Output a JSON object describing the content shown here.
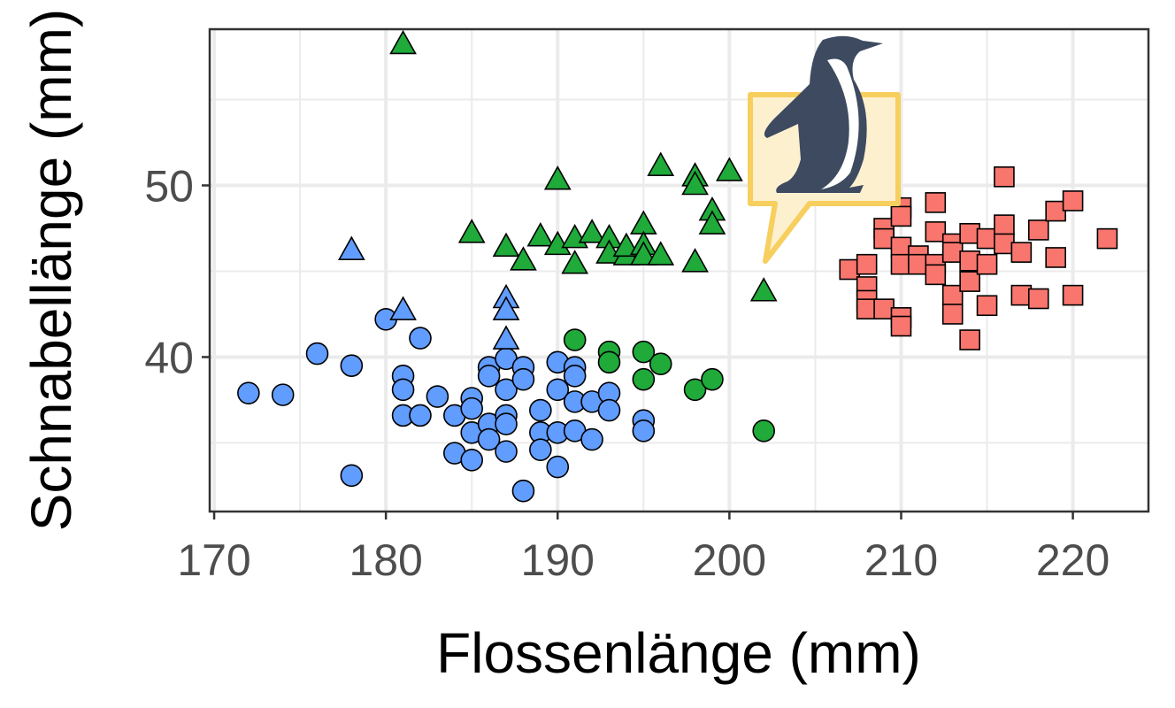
{
  "chart_data": {
    "type": "scatter",
    "xlabel": "Flossenlänge (mm)",
    "ylabel": "Schnabellänge (mm)",
    "xlim": [
      169.74,
      224.4
    ],
    "ylim": [
      31.0,
      59.1
    ],
    "xticks": [
      170,
      180,
      190,
      200,
      210,
      220
    ],
    "yticks": [
      40,
      50
    ],
    "grid": true,
    "legend": "none",
    "logo": "penguin-speech-bubble",
    "series": [
      {
        "color": "#619CFF",
        "marker": "circle",
        "points": [
          [
            172,
            37.9
          ],
          [
            174,
            37.8
          ],
          [
            176,
            40.2
          ],
          [
            178,
            39.5
          ],
          [
            178,
            33.1
          ],
          [
            180,
            42.2
          ],
          [
            182,
            41.1
          ],
          [
            181,
            38.9
          ],
          [
            181,
            38.1
          ],
          [
            181,
            36.6
          ],
          [
            182,
            36.6
          ],
          [
            183,
            37.7
          ],
          [
            184,
            36.6
          ],
          [
            184,
            34.4
          ],
          [
            185,
            37.6
          ],
          [
            185,
            37.0
          ],
          [
            185,
            35.6
          ],
          [
            185,
            34.0
          ],
          [
            186,
            39.4
          ],
          [
            186,
            38.9
          ],
          [
            186,
            36.1
          ],
          [
            186,
            35.2
          ],
          [
            187,
            38.1
          ],
          [
            187,
            36.6
          ],
          [
            187,
            36.1
          ],
          [
            187,
            34.5
          ],
          [
            187,
            39.9
          ],
          [
            188,
            39.4
          ],
          [
            188,
            38.7
          ],
          [
            188,
            32.2
          ],
          [
            189,
            36.9
          ],
          [
            189,
            35.6
          ],
          [
            189,
            34.6
          ],
          [
            190,
            39.7
          ],
          [
            190,
            38.1
          ],
          [
            190,
            35.6
          ],
          [
            190,
            33.6
          ],
          [
            191,
            39.4
          ],
          [
            191,
            38.9
          ],
          [
            191,
            37.4
          ],
          [
            191,
            35.7
          ],
          [
            192,
            37.4
          ],
          [
            192,
            35.2
          ],
          [
            193,
            37.9
          ],
          [
            193,
            36.9
          ],
          [
            195,
            36.3
          ],
          [
            195,
            35.7
          ]
        ]
      },
      {
        "color": "#619CFF",
        "marker": "triangle",
        "points": [
          [
            178,
            46.2
          ],
          [
            181,
            42.7
          ],
          [
            187,
            43.4
          ],
          [
            187,
            42.7
          ],
          [
            187,
            41.0
          ]
        ]
      },
      {
        "color": "#1FAA3A",
        "marker": "triangle",
        "points": [
          [
            181,
            58.2
          ],
          [
            185,
            47.2
          ],
          [
            187,
            46.4
          ],
          [
            188,
            45.6
          ],
          [
            189,
            47.0
          ],
          [
            190,
            50.3
          ],
          [
            190,
            46.5
          ],
          [
            191,
            45.4
          ],
          [
            191,
            46.9
          ],
          [
            192,
            47.2
          ],
          [
            193,
            46.9
          ],
          [
            193,
            46.0
          ],
          [
            194,
            45.9
          ],
          [
            194,
            46.4
          ],
          [
            195,
            47.7
          ],
          [
            195,
            46.5
          ],
          [
            195,
            45.9
          ],
          [
            196,
            45.9
          ],
          [
            196,
            51.1
          ],
          [
            198,
            50.5
          ],
          [
            198,
            50.0
          ],
          [
            198,
            45.5
          ],
          [
            199,
            48.5
          ],
          [
            199,
            47.7
          ],
          [
            200,
            50.8
          ],
          [
            202,
            43.8
          ]
        ]
      },
      {
        "color": "#1FAA3A",
        "marker": "circle",
        "points": [
          [
            191,
            41.0
          ],
          [
            193,
            40.3
          ],
          [
            193,
            39.7
          ],
          [
            195,
            40.3
          ],
          [
            195,
            38.7
          ],
          [
            196,
            39.6
          ],
          [
            198,
            38.1
          ],
          [
            199,
            38.7
          ],
          [
            202,
            35.7
          ]
        ]
      },
      {
        "color": "#F8766D",
        "marker": "square",
        "points": [
          [
            207,
            45.1
          ],
          [
            208,
            45.4
          ],
          [
            208,
            44.1
          ],
          [
            208,
            43.3
          ],
          [
            208,
            42.8
          ],
          [
            209,
            47.5
          ],
          [
            209,
            46.9
          ],
          [
            209,
            42.8
          ],
          [
            210,
            48.7
          ],
          [
            210,
            48.2
          ],
          [
            210,
            46.4
          ],
          [
            210,
            45.4
          ],
          [
            210,
            42.3
          ],
          [
            210,
            41.8
          ],
          [
            211,
            45.9
          ],
          [
            211,
            45.4
          ],
          [
            212,
            49.0
          ],
          [
            212,
            47.3
          ],
          [
            212,
            45.4
          ],
          [
            212,
            44.8
          ],
          [
            213,
            46.6
          ],
          [
            213,
            46.1
          ],
          [
            213,
            43.6
          ],
          [
            213,
            42.5
          ],
          [
            214,
            47.2
          ],
          [
            214,
            45.6
          ],
          [
            214,
            44.4
          ],
          [
            214,
            41.0
          ],
          [
            215,
            46.9
          ],
          [
            215,
            45.4
          ],
          [
            215,
            43.0
          ],
          [
            216,
            50.5
          ],
          [
            216,
            47.7
          ],
          [
            216,
            46.6
          ],
          [
            217,
            46.1
          ],
          [
            217,
            43.6
          ],
          [
            218,
            47.4
          ],
          [
            218,
            43.4
          ],
          [
            219,
            48.5
          ],
          [
            219,
            45.8
          ],
          [
            220,
            49.1
          ],
          [
            220,
            43.6
          ],
          [
            222,
            46.9
          ]
        ]
      }
    ]
  }
}
